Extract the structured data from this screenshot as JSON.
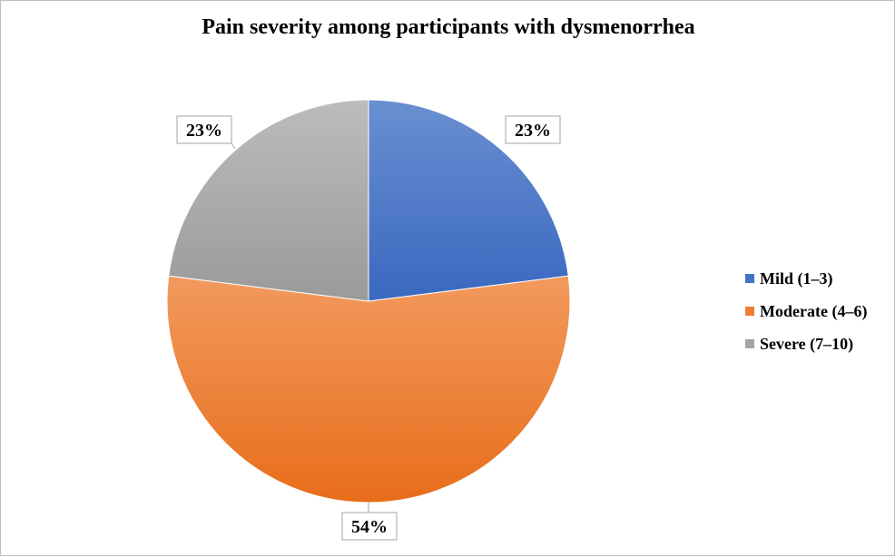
{
  "chart_data": {
    "type": "pie",
    "title": "Pain severity among participants with dysmenorrhea",
    "legend_position": "right",
    "slices": [
      {
        "label": "Mild (1–3)",
        "value": 23,
        "data_label": "23%",
        "color": "#4472c4"
      },
      {
        "label": "Moderate (4–6)",
        "value": 54,
        "data_label": "54%",
        "color": "#ed7d31"
      },
      {
        "label": "Severe (7–10)",
        "value": 23,
        "data_label": "23%",
        "color": "#a5a5a5"
      }
    ]
  }
}
